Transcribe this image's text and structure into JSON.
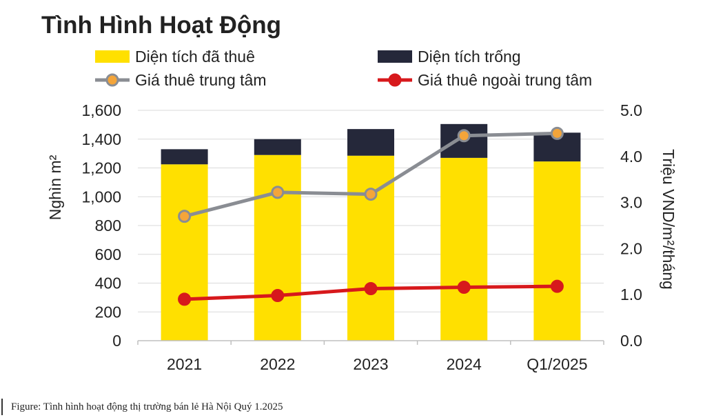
{
  "chart_data": {
    "type": "bar",
    "title": "Tình Hình Hoạt Động",
    "categories": [
      "2021",
      "2022",
      "2023",
      "2024",
      "Q1/2025"
    ],
    "stacked": true,
    "ylabel": "Nghìn m²",
    "ylim": [
      0,
      1600
    ],
    "yticks": [
      "0",
      "200",
      "400",
      "600",
      "800",
      "1,000",
      "1,200",
      "1,400",
      "1,600"
    ],
    "y2label": "Triệu VND/m²/tháng",
    "y2lim": [
      0.0,
      5.0
    ],
    "y2ticks": [
      "0.0",
      "1.0",
      "2.0",
      "3.0",
      "4.0",
      "5.0"
    ],
    "grid": true,
    "legend_position": "top",
    "series": [
      {
        "name": "Diện tích đã thuê",
        "kind": "bar",
        "axis": "left",
        "color": "#FFE000",
        "values": [
          1225,
          1290,
          1285,
          1270,
          1245
        ]
      },
      {
        "name": "Diện tích trống",
        "kind": "bar",
        "axis": "left",
        "color": "#25283A",
        "values": [
          105,
          110,
          185,
          235,
          200
        ]
      },
      {
        "name": "Giá thuê trung tâm",
        "kind": "line",
        "axis": "right",
        "color": "#8A8D93",
        "marker_color": "#F4A53A",
        "values": [
          2.7,
          3.22,
          3.18,
          4.45,
          4.5
        ]
      },
      {
        "name": "Giá thuê ngoài trung tâm",
        "kind": "line",
        "axis": "right",
        "color": "#D7191C",
        "marker_color": "#D7191C",
        "values": [
          0.9,
          0.98,
          1.13,
          1.16,
          1.18
        ]
      }
    ]
  },
  "caption": "Figure: Tình hình hoạt động thị trường bán lẻ Hà Nội Quý 1.2025"
}
